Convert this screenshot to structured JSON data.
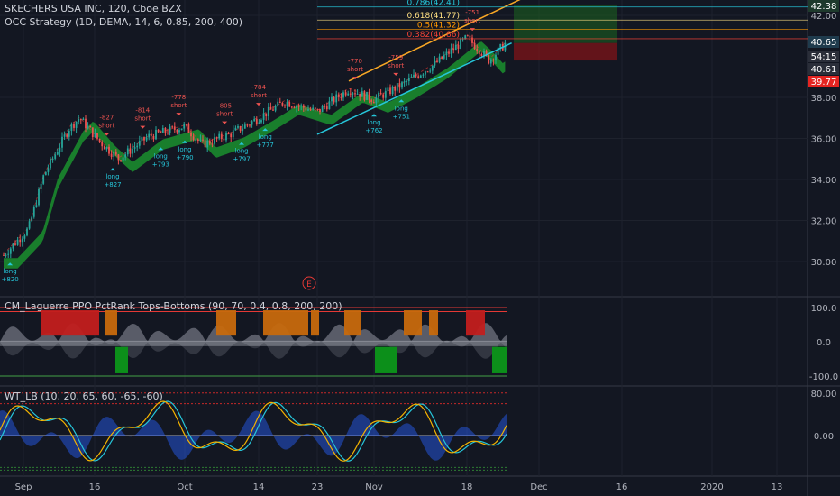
{
  "header": {
    "title": "SKECHERS USA INC, 120, Cboe BZX",
    "indicator": "OCC Strategy (1D, DEMA, 14, 6, 0.85, 200, 400)"
  },
  "panels": {
    "ppo_title": "CM_Laguerre PPO PctRank Tops-Bottoms (90, 70, 0.4, 0.8, 200, 200)",
    "wt_title": "WT_LB (10, 20, 65, 60, -65, -60)"
  },
  "price_badges": [
    {
      "label": "42.38",
      "bg": "#1e3a2c",
      "fg": "#ffffff",
      "price": 42.38
    },
    {
      "label": "40.65",
      "bg": "#1f3b4d",
      "fg": "#ffffff",
      "price": 40.65
    },
    {
      "label": "54:15",
      "bg": "#2a2e39",
      "fg": "#ffffff",
      "price": 40.25
    },
    {
      "label": "40.61",
      "bg": "#2a2e39",
      "fg": "#ffffff",
      "price": 39.95
    },
    {
      "label": "39.77",
      "bg": "#e52421",
      "fg": "#ffffff",
      "price": 39.77
    }
  ],
  "fib_labels": [
    {
      "text": "0.786(42.41)",
      "price": 42.41,
      "color": "#26c6da"
    },
    {
      "text": "0.618(41.77)",
      "price": 41.77,
      "color": "#ffe082"
    },
    {
      "text": "0.5(41.32)",
      "price": 41.32,
      "color": "#ff9800"
    },
    {
      "text": "0.382(40.86)",
      "price": 40.86,
      "color": "#f44336"
    }
  ],
  "trade_signals": [
    {
      "type": "long",
      "value": "+820",
      "date": "2019-08-29"
    },
    {
      "type": "long",
      "value": "+827",
      "date": "2019-09-19"
    },
    {
      "type": "short",
      "value": "-827",
      "date": "2019-09-18"
    },
    {
      "type": "short",
      "value": "-814",
      "date": "2019-09-24"
    },
    {
      "type": "long",
      "value": "+793",
      "date": "2019-09-27"
    },
    {
      "type": "short",
      "value": "-778",
      "date": "2019-09-30"
    },
    {
      "type": "long",
      "value": "+790",
      "date": "2019-10-01"
    },
    {
      "type": "short",
      "value": "-805",
      "date": "2019-10-08"
    },
    {
      "type": "short",
      "value": "-784",
      "date": "2019-10-14"
    },
    {
      "type": "long",
      "value": "+797",
      "date": "2019-10-11"
    },
    {
      "type": "long",
      "value": "+777",
      "date": "2019-10-15"
    },
    {
      "type": "short",
      "value": "-770",
      "date": "2019-10-29"
    },
    {
      "type": "long",
      "value": "+762",
      "date": "2019-11-01"
    },
    {
      "type": "short",
      "value": "-759",
      "date": "2019-11-05"
    },
    {
      "type": "long",
      "value": "+751",
      "date": "2019-11-06"
    },
    {
      "type": "short",
      "value": "-751",
      "date": "2019-11-19"
    }
  ],
  "chart_data": [
    {
      "type": "candlestick",
      "title": "SKECHERS USA INC, 120, Cboe BZX",
      "ylim": [
        28.9,
        42.5
      ],
      "y_ticks": [
        30.0,
        32.0,
        34.0,
        36.0,
        38.0,
        42.0
      ],
      "x_ticks": [
        "Sep",
        "16",
        "Oct",
        "14",
        "23",
        "Nov",
        "18",
        "Dec",
        "16",
        "2020",
        "13"
      ],
      "close_path": [
        {
          "date": "2019-08-27",
          "close": 30.3
        },
        {
          "date": "2019-09-03",
          "close": 31.6
        },
        {
          "date": "2019-09-06",
          "close": 34.2
        },
        {
          "date": "2019-09-11",
          "close": 36.5
        },
        {
          "date": "2019-09-13",
          "close": 37.0
        },
        {
          "date": "2019-09-17",
          "close": 35.8
        },
        {
          "date": "2019-09-20",
          "close": 35.0
        },
        {
          "date": "2019-09-25",
          "close": 36.1
        },
        {
          "date": "2019-10-01",
          "close": 36.6
        },
        {
          "date": "2019-10-04",
          "close": 35.7
        },
        {
          "date": "2019-10-09",
          "close": 36.2
        },
        {
          "date": "2019-10-14",
          "close": 37.0
        },
        {
          "date": "2019-10-18",
          "close": 37.8
        },
        {
          "date": "2019-10-23",
          "close": 37.3
        },
        {
          "date": "2019-10-28",
          "close": 38.4
        },
        {
          "date": "2019-11-01",
          "close": 37.9
        },
        {
          "date": "2019-11-06",
          "close": 38.6
        },
        {
          "date": "2019-11-12",
          "close": 39.6
        },
        {
          "date": "2019-11-18",
          "close": 40.9
        },
        {
          "date": "2019-11-20",
          "close": 40.4
        },
        {
          "date": "2019-11-22",
          "close": 39.8
        },
        {
          "date": "2019-11-25",
          "close": 40.65
        }
      ]
    },
    {
      "type": "area",
      "title": "CM_Laguerre PPO PctRank Tops-Bottoms (90, 70, 0.4, 0.8, 200, 200)",
      "ylim": [
        -100,
        100
      ],
      "y_ticks": [
        100.0,
        0.0,
        -100.0
      ]
    },
    {
      "type": "line",
      "title": "WT_LB (10, 20, 65, 60, -65, -60)",
      "ylim": [
        -80,
        80
      ],
      "y_ticks": [
        80.0,
        0.0
      ]
    }
  ],
  "colors": {
    "background": "#131722",
    "up_candle": "#26a69a",
    "down_candle": "#ef5350",
    "cloud_green": "#1b8a2d",
    "channel_top": "#f9a825",
    "channel_bottom": "#26c6da",
    "ppo_orange": "#c7690d",
    "ppo_red": "#c21d1d",
    "ppo_green": "#0c8f1a",
    "wt_line1": "#f4b400",
    "wt_line2": "#26c6da"
  },
  "events_marker": "E"
}
